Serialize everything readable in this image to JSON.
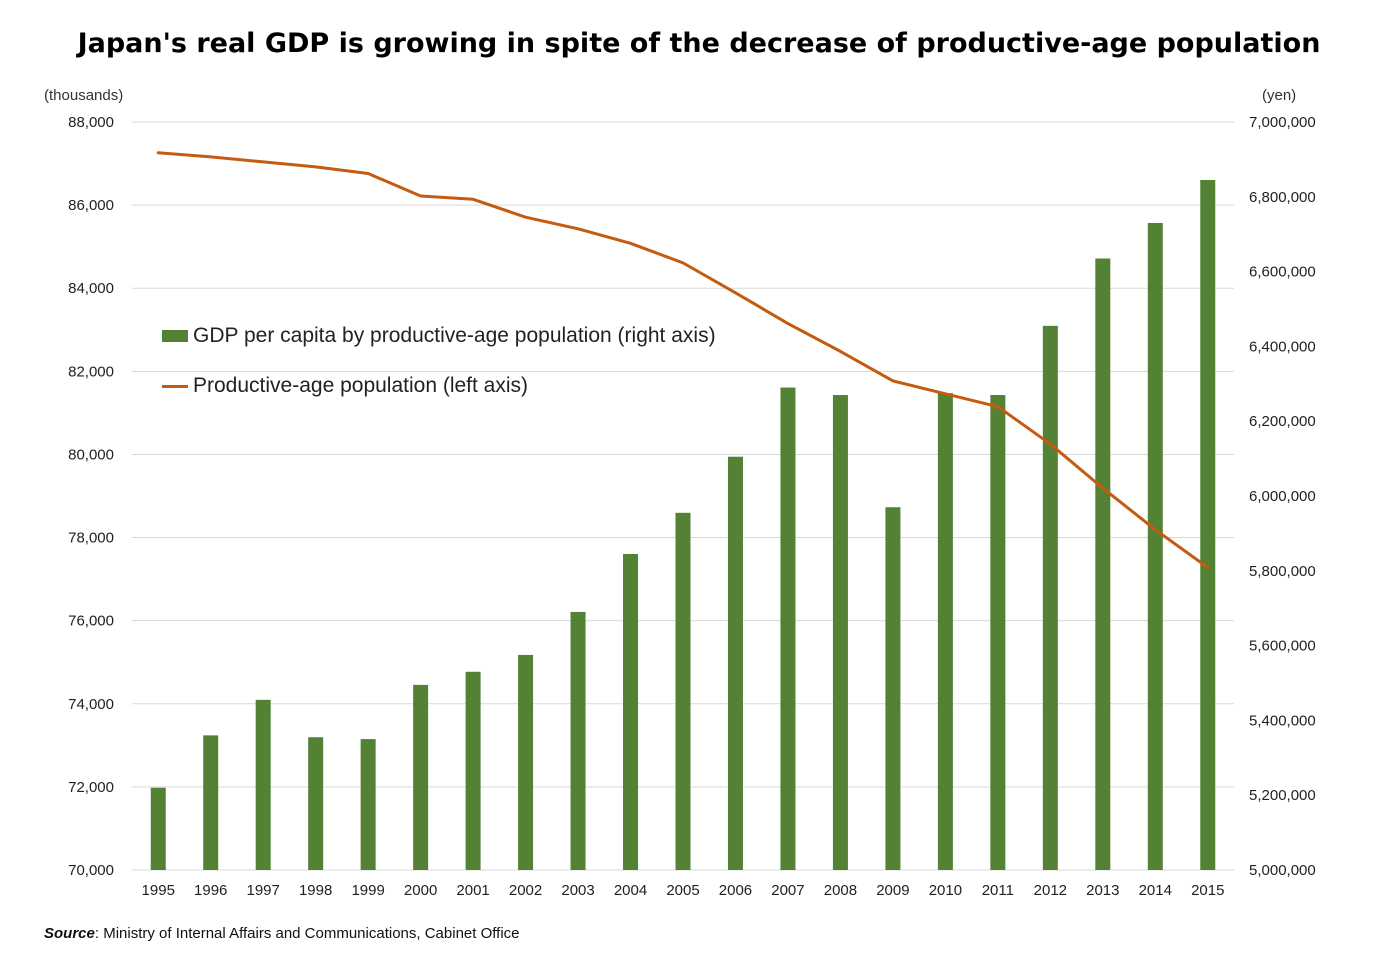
{
  "title": "Japan's real GDP is growing in spite of the decrease of productive-age population",
  "left_unit": "(thousands)",
  "right_unit": "(yen)",
  "source": {
    "label": "Source",
    "text": ": Ministry of Internal Affairs and Communications, Cabinet Office"
  },
  "colors": {
    "bar": "#548235",
    "line": "#c55a11",
    "grid": "#d9d9d9",
    "axis_text": "#222222"
  },
  "chart_data": {
    "type": "bar",
    "title": "Japan's real GDP is growing in spite of the decrease of productive-age population",
    "categories": [
      "1995",
      "1996",
      "1997",
      "1998",
      "1999",
      "2000",
      "2001",
      "2002",
      "2003",
      "2004",
      "2005",
      "2006",
      "2007",
      "2008",
      "2009",
      "2010",
      "2011",
      "2012",
      "2013",
      "2014",
      "2015"
    ],
    "series": [
      {
        "name": "GDP per capita by productive-age population (right axis)",
        "type": "bar",
        "axis": "right",
        "values": [
          5220000,
          5360000,
          5455000,
          5355000,
          5350000,
          5495000,
          5530000,
          5575000,
          5690000,
          5845000,
          5955000,
          6105000,
          6290000,
          6270000,
          5970000,
          6275000,
          6270000,
          6455000,
          6635000,
          6730000,
          6845000
        ]
      },
      {
        "name": "Productive-age population (left axis)",
        "type": "line",
        "axis": "left",
        "values": [
          87260,
          87160,
          87040,
          86920,
          86760,
          86220,
          86140,
          85710,
          85430,
          85080,
          84610,
          83890,
          83150,
          82480,
          81770,
          81460,
          81150,
          80250,
          79190,
          78190,
          77280
        ]
      }
    ],
    "left_axis": {
      "ylim": [
        70000,
        88000
      ],
      "ticks": [
        "70,000",
        "72,000",
        "74,000",
        "76,000",
        "78,000",
        "80,000",
        "82,000",
        "84,000",
        "86,000",
        "88,000"
      ]
    },
    "right_axis": {
      "ylim": [
        5000000,
        7000000
      ],
      "ticks": [
        "5,000,000",
        "5,200,000",
        "5,400,000",
        "5,600,000",
        "5,800,000",
        "6,000,000",
        "6,200,000",
        "6,400,000",
        "6,600,000",
        "6,800,000",
        "7,000,000"
      ]
    },
    "grid": true,
    "legend_position": "left-middle"
  }
}
